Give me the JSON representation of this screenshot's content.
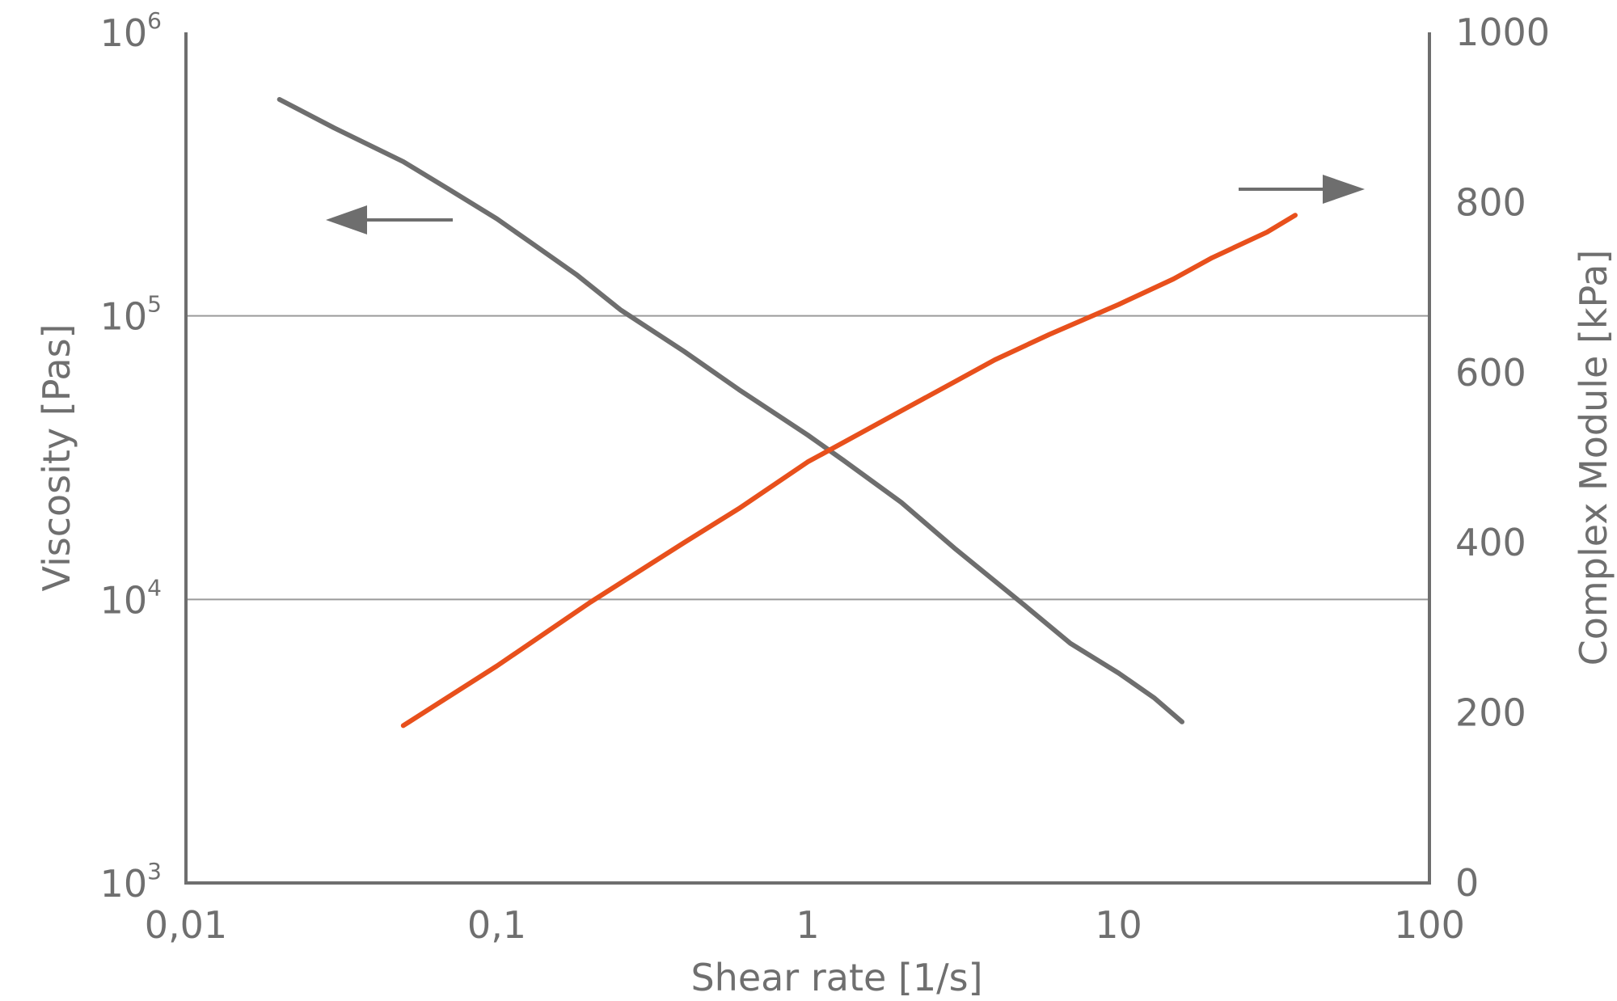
{
  "chart_data": {
    "type": "line",
    "xlabel": "Shear rate [1/s]",
    "ylabel_left": "Viscosity [Pas]",
    "ylabel_right": "Complex Module [kPa]",
    "x_scale": "log",
    "y_left_scale": "log",
    "y_right_scale": "linear",
    "xlim": [
      0.01,
      100
    ],
    "ylim_left": [
      1000,
      1000000
    ],
    "ylim_right": [
      0,
      1000
    ],
    "x_ticks": [
      0.01,
      0.1,
      1,
      10,
      100
    ],
    "x_tick_labels": [
      "0,01",
      "0,1",
      "1",
      "10",
      "100"
    ],
    "y_left_ticks": [
      1000,
      10000,
      100000,
      1000000
    ],
    "y_left_tick_labels": [
      {
        "base": "10",
        "exp": "3"
      },
      {
        "base": "10",
        "exp": "4"
      },
      {
        "base": "10",
        "exp": "5"
      },
      {
        "base": "10",
        "exp": "6"
      }
    ],
    "y_right_ticks": [
      0,
      200,
      400,
      600,
      800,
      1000
    ],
    "y_right_tick_labels": [
      "0",
      "200",
      "400",
      "600",
      "800",
      "1000"
    ],
    "grid": "horizontal at 10^4 and 10^5",
    "series": [
      {
        "axis": "left",
        "color": "#6e6e6e",
        "x": [
          0.02,
          0.03,
          0.05,
          0.07,
          0.1,
          0.13,
          0.18,
          0.25,
          0.4,
          0.6,
          1,
          1.3,
          2,
          3,
          5,
          7,
          10,
          13,
          16
        ],
        "y": [
          580000,
          460000,
          350000,
          280000,
          220000,
          180000,
          140000,
          105000,
          75000,
          55000,
          38000,
          31000,
          22000,
          15000,
          9500,
          7000,
          5500,
          4500,
          3700
        ]
      },
      {
        "axis": "right",
        "color": "#e8501c",
        "x": [
          0.05,
          0.1,
          0.2,
          0.4,
          0.6,
          1,
          1.5,
          2,
          3,
          4,
          6,
          10,
          15,
          20,
          30,
          37
        ],
        "y": [
          185,
          255,
          330,
          400,
          440,
          495,
          530,
          555,
          590,
          615,
          645,
          680,
          710,
          735,
          765,
          785
        ]
      }
    ],
    "annotations": [
      {
        "type": "arrow",
        "points_to": "left-axis",
        "near_series": 0
      },
      {
        "type": "arrow",
        "points_to": "right-axis",
        "near_series": 1
      }
    ]
  }
}
